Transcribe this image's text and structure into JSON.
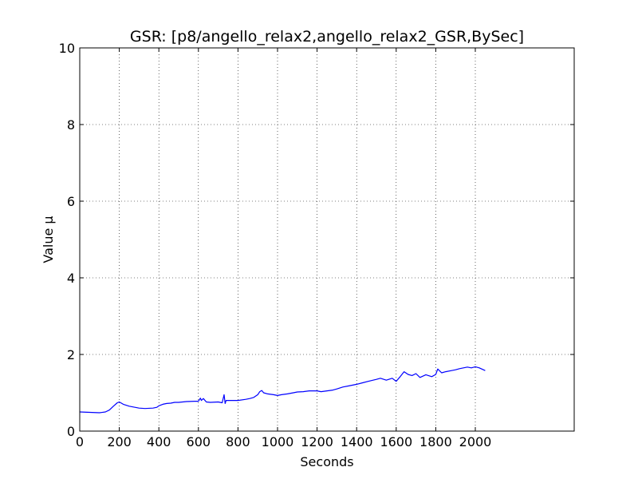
{
  "chart_data": {
    "type": "line",
    "title": "GSR: [p8/angello_relax2,angello_relax2_GSR,BySec]",
    "xlabel": "Seconds",
    "ylabel": "Value µ",
    "xlim": [
      0,
      2500
    ],
    "ylim": [
      0,
      10
    ],
    "x_ticks": [
      0,
      200,
      400,
      600,
      800,
      1000,
      1200,
      1400,
      1600,
      1800,
      2000
    ],
    "y_ticks": [
      0,
      2,
      4,
      6,
      8,
      10
    ],
    "grid": true,
    "grid_style": "dotted",
    "series": [
      {
        "color": "#0000ff",
        "x": [
          0,
          50,
          100,
          130,
          150,
          170,
          190,
          200,
          220,
          250,
          300,
          330,
          370,
          390,
          400,
          420,
          440,
          460,
          480,
          500,
          540,
          580,
          600,
          610,
          615,
          625,
          640,
          660,
          700,
          720,
          730,
          735,
          740,
          760,
          800,
          840,
          860,
          880,
          900,
          910,
          920,
          930,
          950,
          980,
          1000,
          1020,
          1050,
          1080,
          1100,
          1130,
          1160,
          1200,
          1220,
          1250,
          1280,
          1300,
          1330,
          1360,
          1400,
          1430,
          1460,
          1500,
          1520,
          1550,
          1580,
          1600,
          1620,
          1640,
          1660,
          1680,
          1700,
          1720,
          1750,
          1780,
          1800,
          1810,
          1830,
          1850,
          1880,
          1900,
          1920,
          1940,
          1960,
          1980,
          2000,
          2020,
          2050
        ],
        "values": [
          0.5,
          0.49,
          0.48,
          0.5,
          0.55,
          0.65,
          0.74,
          0.76,
          0.7,
          0.65,
          0.6,
          0.59,
          0.6,
          0.62,
          0.66,
          0.7,
          0.72,
          0.73,
          0.75,
          0.75,
          0.77,
          0.78,
          0.78,
          0.86,
          0.8,
          0.85,
          0.76,
          0.75,
          0.76,
          0.74,
          0.95,
          0.72,
          0.8,
          0.8,
          0.8,
          0.83,
          0.85,
          0.88,
          0.95,
          1.03,
          1.06,
          1.0,
          0.97,
          0.95,
          0.93,
          0.95,
          0.97,
          1.0,
          1.02,
          1.03,
          1.05,
          1.05,
          1.03,
          1.05,
          1.07,
          1.1,
          1.15,
          1.18,
          1.22,
          1.26,
          1.3,
          1.35,
          1.38,
          1.33,
          1.38,
          1.3,
          1.42,
          1.55,
          1.48,
          1.45,
          1.5,
          1.4,
          1.47,
          1.42,
          1.48,
          1.62,
          1.52,
          1.55,
          1.58,
          1.6,
          1.63,
          1.65,
          1.67,
          1.65,
          1.68,
          1.65,
          1.58
        ]
      }
    ]
  }
}
